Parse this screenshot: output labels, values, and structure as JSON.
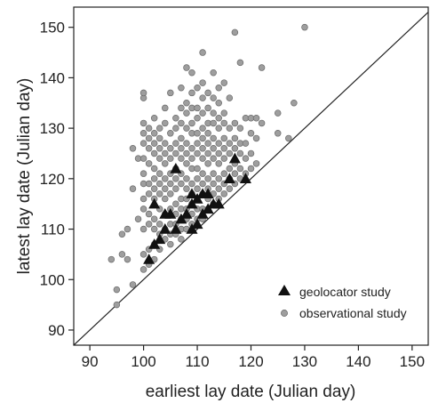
{
  "chart_data": {
    "type": "scatter",
    "title": "",
    "xlabel": "earliest lay date (Julian day)",
    "ylabel": "latest lay date (Julian day)",
    "xlim": [
      87,
      153
    ],
    "ylim": [
      87,
      154
    ],
    "x_ticks": [
      "90",
      "100",
      "110",
      "120",
      "130",
      "140",
      "150"
    ],
    "y_ticks": [
      "90",
      "100",
      "110",
      "120",
      "130",
      "140",
      "150"
    ],
    "reference_line": "1:1 (y = x)",
    "grid": false,
    "legend_position": "bottom-right",
    "legend": [
      {
        "label": "geolocator study",
        "marker": "triangle",
        "color": "#111111"
      },
      {
        "label": "observational study",
        "marker": "circle",
        "color": "#9e9e9e"
      }
    ],
    "series": [
      {
        "name": "observational study",
        "marker": "circle",
        "color": "#9e9e9e",
        "points": [
          [
            95,
            95
          ],
          [
            95,
            98
          ],
          [
            94,
            104
          ],
          [
            96,
            105
          ],
          [
            96,
            109
          ],
          [
            97,
            104
          ],
          [
            97,
            110
          ],
          [
            98,
            99
          ],
          [
            98,
            118
          ],
          [
            98,
            126
          ],
          [
            99,
            112
          ],
          [
            99,
            124
          ],
          [
            100,
            102
          ],
          [
            100,
            105
          ],
          [
            100,
            110
          ],
          [
            100,
            114
          ],
          [
            100,
            116
          ],
          [
            100,
            119
          ],
          [
            100,
            121
          ],
          [
            100,
            124
          ],
          [
            100,
            127
          ],
          [
            100,
            129
          ],
          [
            100,
            131
          ],
          [
            100,
            136
          ],
          [
            100,
            137
          ],
          [
            101,
            103
          ],
          [
            101,
            106
          ],
          [
            101,
            111
          ],
          [
            101,
            113
          ],
          [
            101,
            117
          ],
          [
            101,
            119
          ],
          [
            101,
            123
          ],
          [
            101,
            126
          ],
          [
            101,
            128
          ],
          [
            101,
            130
          ],
          [
            102,
            104
          ],
          [
            102,
            107
          ],
          [
            102,
            110
          ],
          [
            102,
            112
          ],
          [
            102,
            116
          ],
          [
            102,
            118
          ],
          [
            102,
            120
          ],
          [
            102,
            122
          ],
          [
            102,
            125
          ],
          [
            102,
            127
          ],
          [
            102,
            129
          ],
          [
            102,
            132
          ],
          [
            103,
            106
          ],
          [
            103,
            109
          ],
          [
            103,
            111
          ],
          [
            103,
            114
          ],
          [
            103,
            117
          ],
          [
            103,
            119
          ],
          [
            103,
            121
          ],
          [
            103,
            124
          ],
          [
            103,
            126
          ],
          [
            103,
            128
          ],
          [
            103,
            130
          ],
          [
            104,
            108
          ],
          [
            104,
            110
          ],
          [
            104,
            113
          ],
          [
            104,
            116
          ],
          [
            104,
            118
          ],
          [
            104,
            120
          ],
          [
            104,
            123
          ],
          [
            104,
            125
          ],
          [
            104,
            127
          ],
          [
            104,
            131
          ],
          [
            104,
            134
          ],
          [
            105,
            107
          ],
          [
            105,
            109
          ],
          [
            105,
            111
          ],
          [
            105,
            114
          ],
          [
            105,
            117
          ],
          [
            105,
            119
          ],
          [
            105,
            121
          ],
          [
            105,
            124
          ],
          [
            105,
            126
          ],
          [
            105,
            129
          ],
          [
            105,
            137
          ],
          [
            106,
            109
          ],
          [
            106,
            111
          ],
          [
            106,
            113
          ],
          [
            106,
            115
          ],
          [
            106,
            118
          ],
          [
            106,
            120
          ],
          [
            106,
            122
          ],
          [
            106,
            125
          ],
          [
            106,
            127
          ],
          [
            106,
            130
          ],
          [
            106,
            132
          ],
          [
            107,
            108
          ],
          [
            107,
            110
          ],
          [
            107,
            112
          ],
          [
            107,
            114
          ],
          [
            107,
            116
          ],
          [
            107,
            119
          ],
          [
            107,
            121
          ],
          [
            107,
            124
          ],
          [
            107,
            126
          ],
          [
            107,
            128
          ],
          [
            107,
            131
          ],
          [
            107,
            134
          ],
          [
            107,
            138
          ],
          [
            108,
            110
          ],
          [
            108,
            112
          ],
          [
            108,
            114
          ],
          [
            108,
            116
          ],
          [
            108,
            118
          ],
          [
            108,
            120
          ],
          [
            108,
            123
          ],
          [
            108,
            125
          ],
          [
            108,
            127
          ],
          [
            108,
            130
          ],
          [
            108,
            133
          ],
          [
            108,
            135
          ],
          [
            108,
            142
          ],
          [
            109,
            111
          ],
          [
            109,
            113
          ],
          [
            109,
            115
          ],
          [
            109,
            117
          ],
          [
            109,
            119
          ],
          [
            109,
            122
          ],
          [
            109,
            124
          ],
          [
            109,
            126
          ],
          [
            109,
            129
          ],
          [
            109,
            131
          ],
          [
            109,
            134
          ],
          [
            109,
            137
          ],
          [
            109,
            141
          ],
          [
            110,
            112
          ],
          [
            110,
            114
          ],
          [
            110,
            116
          ],
          [
            110,
            118
          ],
          [
            110,
            120
          ],
          [
            110,
            122
          ],
          [
            110,
            125
          ],
          [
            110,
            127
          ],
          [
            110,
            129
          ],
          [
            110,
            132
          ],
          [
            110,
            134
          ],
          [
            110,
            138
          ],
          [
            111,
            112
          ],
          [
            111,
            114
          ],
          [
            111,
            117
          ],
          [
            111,
            119
          ],
          [
            111,
            121
          ],
          [
            111,
            124
          ],
          [
            111,
            126
          ],
          [
            111,
            128
          ],
          [
            111,
            130
          ],
          [
            111,
            133
          ],
          [
            111,
            136
          ],
          [
            111,
            139
          ],
          [
            111,
            145
          ],
          [
            112,
            114
          ],
          [
            112,
            116
          ],
          [
            112,
            118
          ],
          [
            112,
            120
          ],
          [
            112,
            123
          ],
          [
            112,
            125
          ],
          [
            112,
            127
          ],
          [
            112,
            129
          ],
          [
            112,
            131
          ],
          [
            112,
            134
          ],
          [
            112,
            137
          ],
          [
            113,
            115
          ],
          [
            113,
            117
          ],
          [
            113,
            119
          ],
          [
            113,
            121
          ],
          [
            113,
            124
          ],
          [
            113,
            126
          ],
          [
            113,
            128
          ],
          [
            113,
            131
          ],
          [
            113,
            133
          ],
          [
            113,
            136
          ],
          [
            113,
            141
          ],
          [
            114,
            116
          ],
          [
            114,
            118
          ],
          [
            114,
            120
          ],
          [
            114,
            123
          ],
          [
            114,
            125
          ],
          [
            114,
            127
          ],
          [
            114,
            130
          ],
          [
            114,
            132
          ],
          [
            114,
            135
          ],
          [
            114,
            138
          ],
          [
            115,
            117
          ],
          [
            115,
            119
          ],
          [
            115,
            121
          ],
          [
            115,
            124
          ],
          [
            115,
            126
          ],
          [
            115,
            128
          ],
          [
            115,
            131
          ],
          [
            115,
            133
          ],
          [
            115,
            139
          ],
          [
            116,
            118
          ],
          [
            116,
            120
          ],
          [
            116,
            122
          ],
          [
            116,
            125
          ],
          [
            116,
            127
          ],
          [
            116,
            130
          ],
          [
            116,
            136
          ],
          [
            117,
            119
          ],
          [
            117,
            121
          ],
          [
            117,
            123
          ],
          [
            117,
            126
          ],
          [
            117,
            128
          ],
          [
            117,
            131
          ],
          [
            117,
            149
          ],
          [
            118,
            120
          ],
          [
            118,
            122
          ],
          [
            118,
            125
          ],
          [
            118,
            127
          ],
          [
            118,
            130
          ],
          [
            118,
            143
          ],
          [
            119,
            121
          ],
          [
            119,
            124
          ],
          [
            119,
            127
          ],
          [
            119,
            132
          ],
          [
            120,
            122
          ],
          [
            120,
            125
          ],
          [
            120,
            129
          ],
          [
            120,
            132
          ],
          [
            121,
            123
          ],
          [
            121,
            128
          ],
          [
            121,
            132
          ],
          [
            122,
            131
          ],
          [
            122,
            142
          ],
          [
            125,
            129
          ],
          [
            125,
            133
          ],
          [
            127,
            128
          ],
          [
            128,
            135
          ],
          [
            130,
            150
          ]
        ]
      },
      {
        "name": "geolocator study",
        "marker": "triangle",
        "color": "#111111",
        "points": [
          [
            101,
            104
          ],
          [
            102,
            107
          ],
          [
            102,
            115
          ],
          [
            103,
            108
          ],
          [
            104,
            110
          ],
          [
            104,
            113
          ],
          [
            105,
            113
          ],
          [
            106,
            110
          ],
          [
            106,
            122
          ],
          [
            107,
            112
          ],
          [
            108,
            113
          ],
          [
            109,
            110
          ],
          [
            109,
            115
          ],
          [
            109,
            117
          ],
          [
            110,
            111
          ],
          [
            110,
            116
          ],
          [
            111,
            113
          ],
          [
            111,
            117
          ],
          [
            112,
            114
          ],
          [
            112,
            117
          ],
          [
            113,
            115
          ],
          [
            114,
            115
          ],
          [
            116,
            120
          ],
          [
            117,
            124
          ],
          [
            119,
            120
          ]
        ]
      }
    ]
  }
}
